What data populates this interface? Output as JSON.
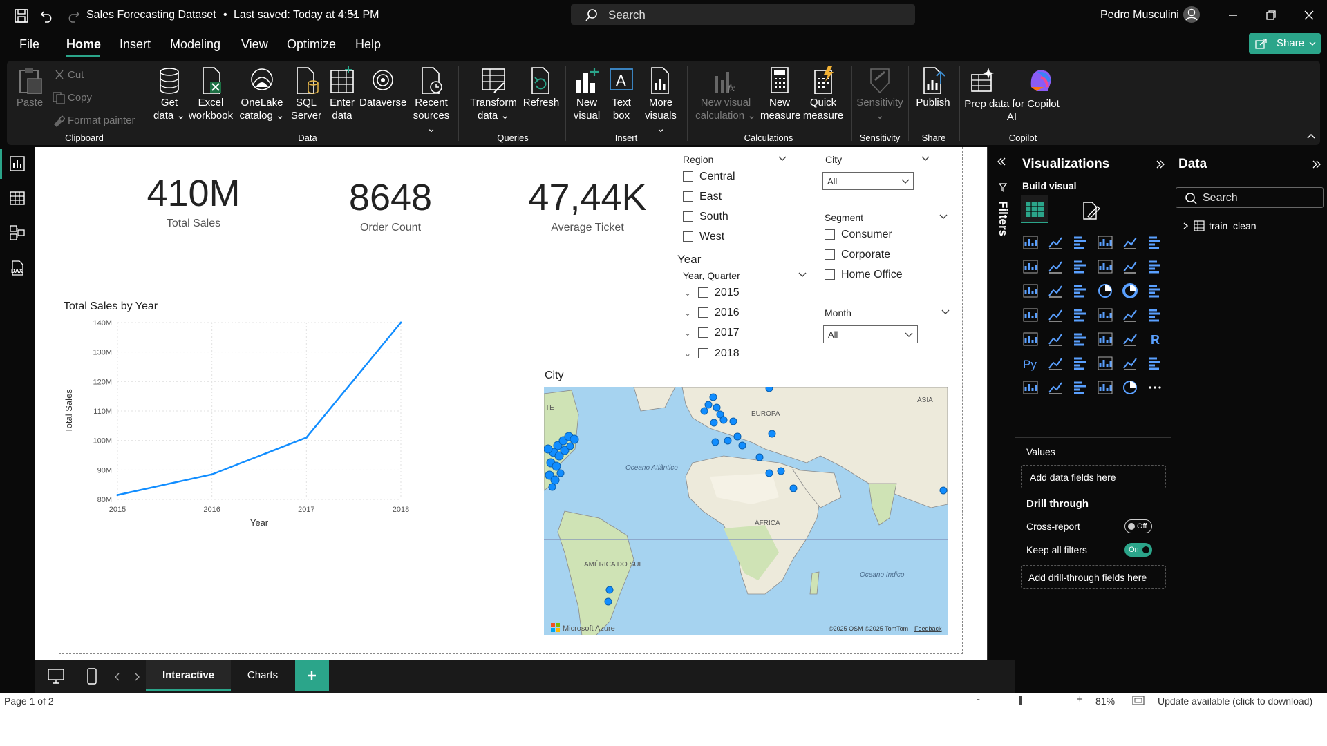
{
  "app": {
    "title": "Sales Forecasting Dataset",
    "saved": "Last saved: Today at 4:51 PM",
    "search_placeholder": "Search",
    "user": "Pedro Musculini",
    "share_label": "Share"
  },
  "menu": [
    "File",
    "Home",
    "Insert",
    "Modeling",
    "View",
    "Optimize",
    "Help"
  ],
  "ribbon": {
    "clipboard": {
      "paste": "Paste",
      "cut": "Cut",
      "copy": "Copy",
      "format_painter": "Format painter",
      "group": "Clipboard"
    },
    "data": {
      "get_data": "Get data",
      "excel": "Excel workbook",
      "onelake": "OneLake catalog",
      "sql": "SQL Server",
      "enter": "Enter data",
      "dataverse": "Dataverse",
      "recent": "Recent sources",
      "group": "Data"
    },
    "queries": {
      "transform": "Transform data",
      "refresh": "Refresh",
      "group": "Queries"
    },
    "insert": {
      "new_visual": "New visual",
      "text_box": "Text box",
      "more_visuals": "More visuals",
      "group": "Insert"
    },
    "calculations": {
      "new_visual_calc": "New visual calculation",
      "new_measure": "New measure",
      "quick_measure": "Quick measure",
      "group": "Calculations"
    },
    "sensitivity": {
      "label": "Sensitivity",
      "group": "Sensitivity"
    },
    "share": {
      "publish": "Publish",
      "group": "Share"
    },
    "copilot": {
      "prep": "Prep data for Copilot AI",
      "group": "Copilot"
    }
  },
  "kpis": [
    {
      "value": "410M",
      "label": "Total Sales"
    },
    {
      "value": "8648",
      "label": "Order Count"
    },
    {
      "value": "47,44K",
      "label": "Average Ticket"
    }
  ],
  "slicers": {
    "region": {
      "title": "Region",
      "items": [
        "Central",
        "East",
        "South",
        "West"
      ]
    },
    "city": {
      "title": "City",
      "value": "All"
    },
    "segment": {
      "title": "Segment",
      "items": [
        "Consumer",
        "Corporate",
        "Home Office"
      ]
    },
    "year": {
      "title": "Year",
      "field": "Year, Quarter",
      "items": [
        "2015",
        "2016",
        "2017",
        "2018"
      ]
    },
    "month": {
      "title": "Month",
      "value": "All"
    }
  },
  "chart_data": {
    "type": "line",
    "title": "Total Sales by Year",
    "xlabel": "Year",
    "ylabel": "Total Sales",
    "x": [
      "2015",
      "2016",
      "2017",
      "2018"
    ],
    "series": [
      {
        "values": [
          81.5,
          88.5,
          101,
          140
        ]
      }
    ],
    "ylim": [
      80,
      140
    ],
    "yticks": [
      "80M",
      "90M",
      "100M",
      "110M",
      "120M",
      "130M",
      "140M"
    ],
    "grid": true,
    "color": "#118DFF"
  },
  "map": {
    "title": "City",
    "labels": {
      "ocean_atlantic": "Oceano Atlântico",
      "ocean_indian": "Oceano Índico",
      "europa": "EUROPA",
      "africa": "ÁFRICA",
      "asia": "ÁSIA",
      "south_america": "AMÉRICA DO SUL",
      "te": "TE"
    },
    "attribution": "©2025 OSM  ©2025 TomTom",
    "feedback": "Feedback",
    "brand": "Microsoft Azure"
  },
  "filters_label": "Filters",
  "viz_pane": {
    "title": "Visualizations",
    "build": "Build visual",
    "values": "Values",
    "add_fields": "Add data fields here",
    "drill": "Drill through",
    "cross_report": "Cross-report",
    "cross_state": "Off",
    "keep_filters": "Keep all filters",
    "keep_state": "On",
    "add_drill": "Add drill-through fields here"
  },
  "data_pane": {
    "title": "Data",
    "search": "Search",
    "table": "train_clean"
  },
  "tabs": [
    "Interactive",
    "Charts"
  ],
  "status": {
    "page": "Page 1 of 2",
    "zoom": "81%",
    "update": "Update available (click to download)"
  },
  "colors": {
    "accent": "#118DFF",
    "teal": "#2BA58A",
    "bg": "#0a0a0a"
  }
}
